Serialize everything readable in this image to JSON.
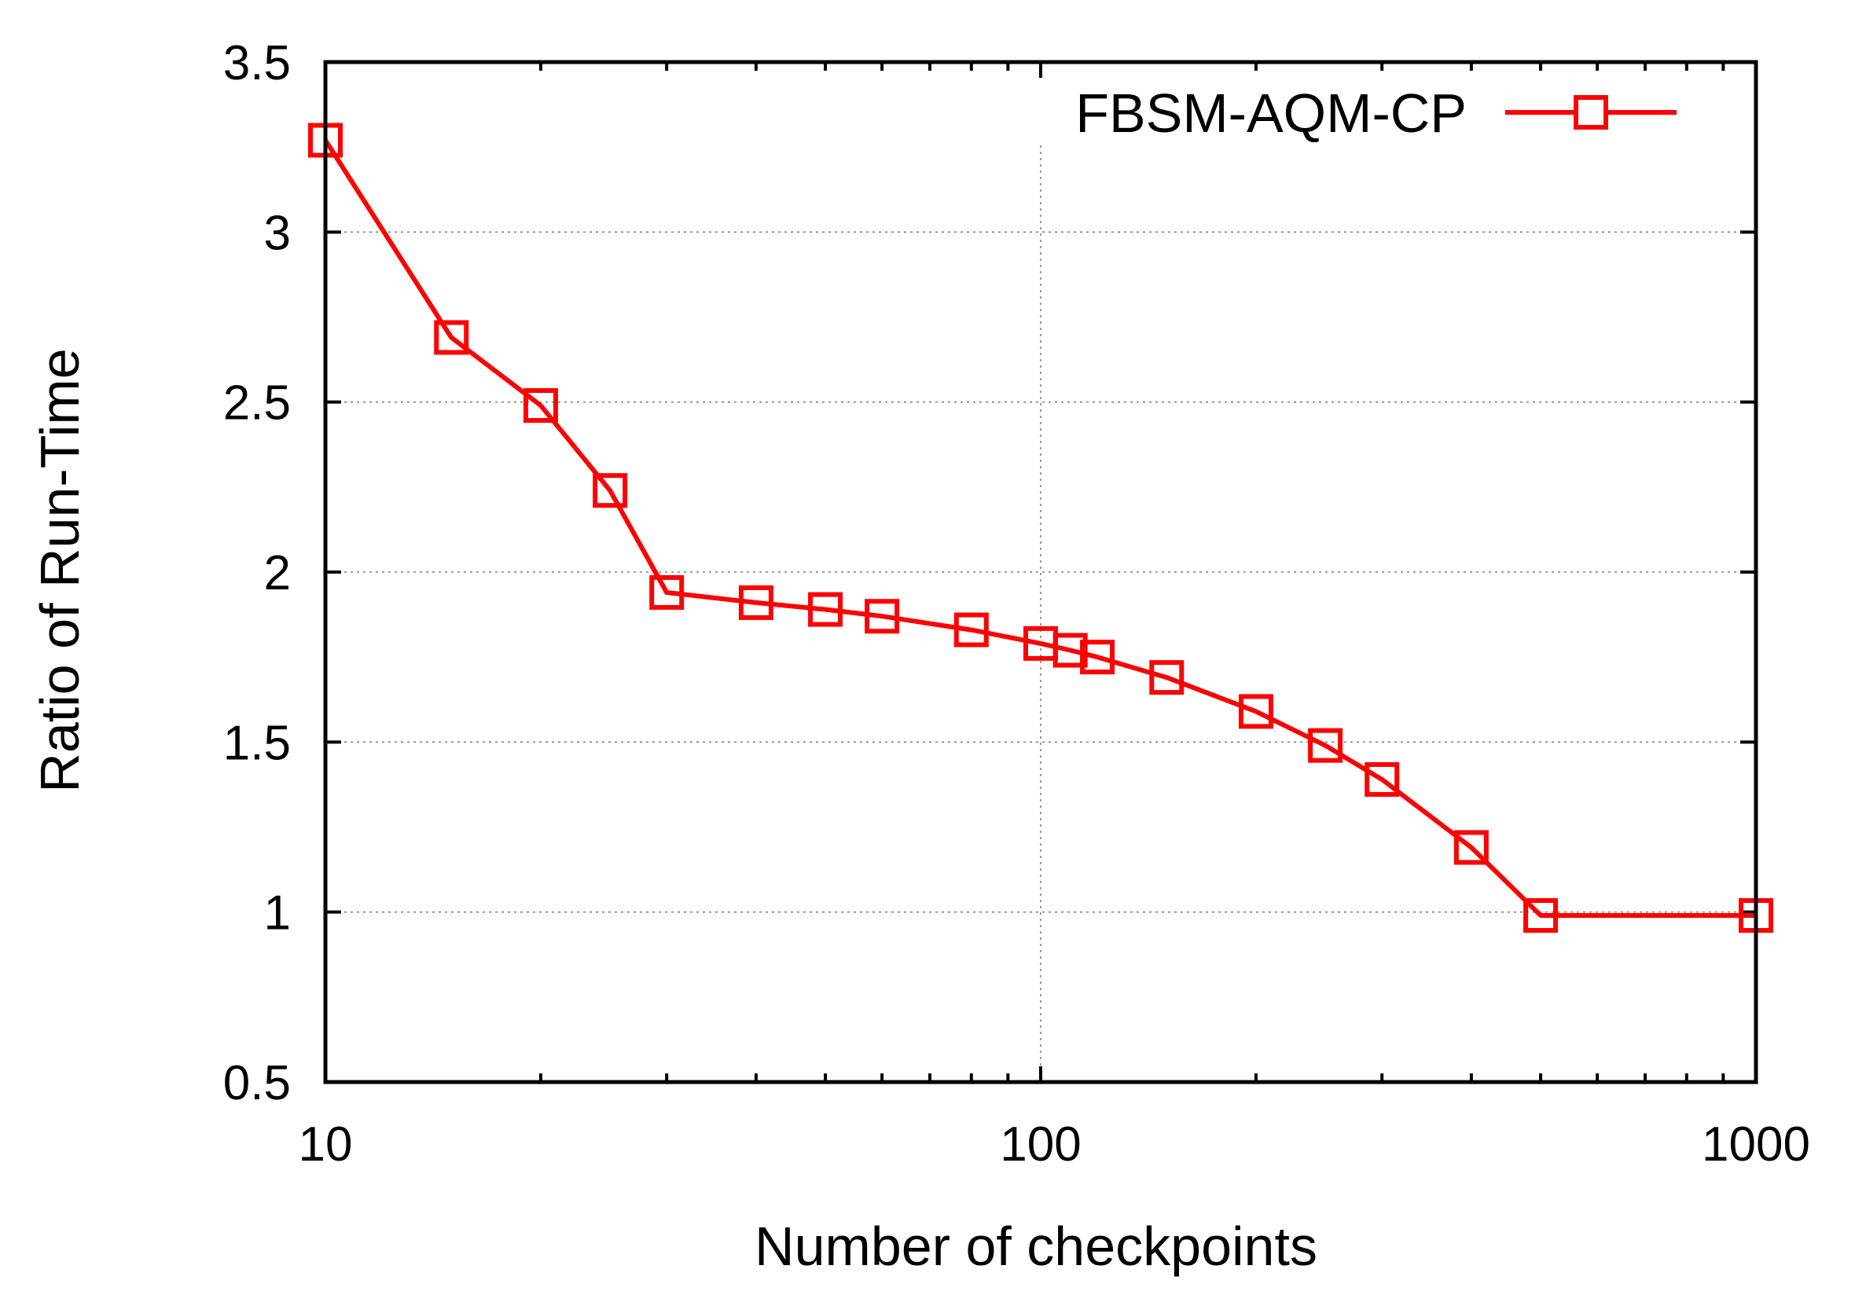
{
  "chart_data": {
    "type": "line",
    "title": "",
    "xlabel": "Number of checkpoints",
    "ylabel": "Ratio of Run-Time",
    "xscale": "log",
    "xlim": [
      10,
      1000
    ],
    "ylim": [
      0.5,
      3.5
    ],
    "xticks": [
      10,
      100,
      1000
    ],
    "xtick_labels": [
      "10",
      "100",
      "1000"
    ],
    "yticks": [
      0.5,
      1,
      1.5,
      2,
      2.5,
      3,
      3.5
    ],
    "ytick_labels": [
      "0.5",
      "1",
      "1.5",
      "2",
      "2.5",
      "3",
      "3.5"
    ],
    "grid": true,
    "legend_position": "top-right",
    "series": [
      {
        "name": "FBSM-AQM-CP",
        "color": "#ff0000",
        "marker": "open-square",
        "x": [
          10,
          15,
          20,
          25,
          30,
          40,
          50,
          60,
          80,
          100,
          110,
          120,
          150,
          200,
          250,
          300,
          400,
          500,
          1000
        ],
        "y": [
          3.27,
          2.69,
          2.49,
          2.24,
          1.94,
          1.91,
          1.89,
          1.87,
          1.83,
          1.79,
          1.77,
          1.75,
          1.69,
          1.59,
          1.49,
          1.39,
          1.19,
          0.99,
          0.99
        ]
      }
    ]
  }
}
